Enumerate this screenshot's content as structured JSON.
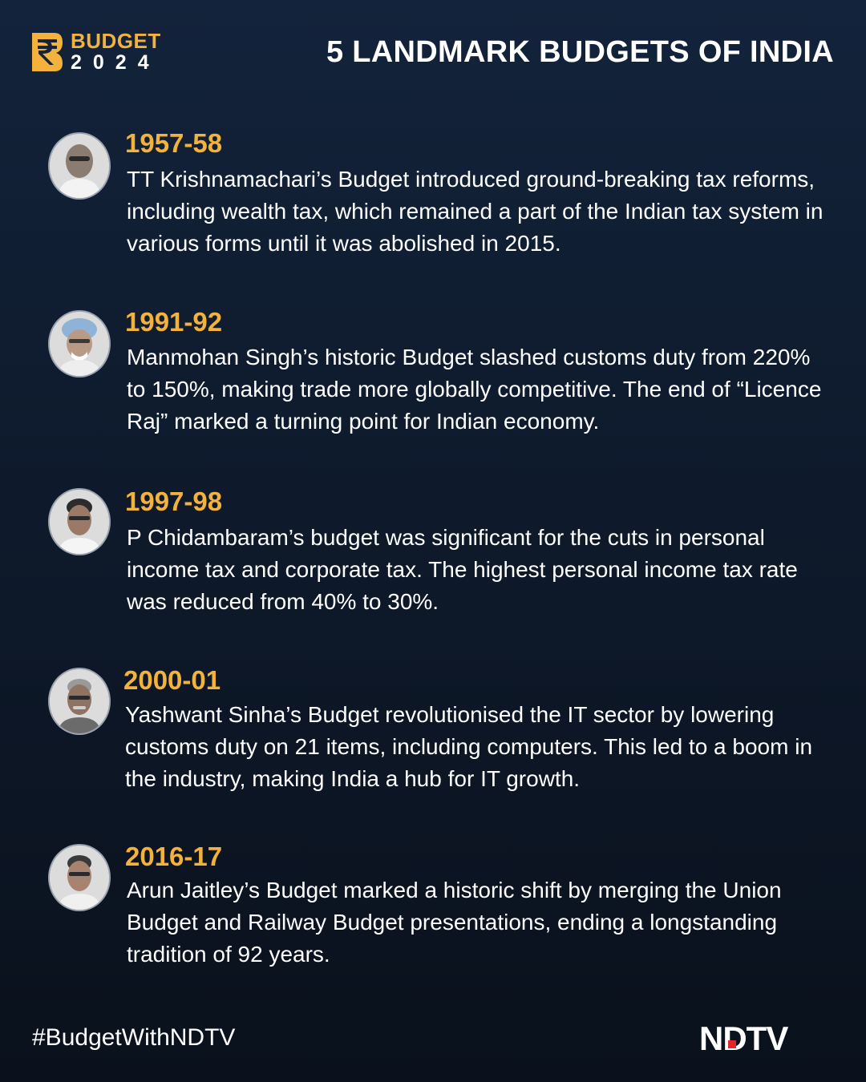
{
  "header": {
    "logo": {
      "word": "BUDGET",
      "year": "2024",
      "icon": "rupee-icon",
      "accent_color": "#f2b23c"
    },
    "title": "5 LANDMARK BUDGETS OF INDIA"
  },
  "entries": [
    {
      "year": "1957-58",
      "text": "TT Krishnamachari’s Budget introduced ground-breaking tax reforms, including wealth tax, which remained a part of the Indian tax system in various forms until it was abolished in 2015."
    },
    {
      "year": "1991-92",
      "text": "Manmohan Singh’s historic Budget slashed customs duty from 220% to 150%, making trade more globally competitive. The end of “Licence Raj” marked a turning point for Indian economy."
    },
    {
      "year": "1997-98",
      "text": "P Chidambaram’s budget was significant for the cuts in personal income tax and corporate tax. The highest personal income tax rate was reduced from 40% to 30%."
    },
    {
      "year": "2000-01",
      "text": "Yashwant Sinha’s Budget revolutionised the IT sector by lowering customs duty on 21 items, including computers. This led to a boom in the industry, making India a hub for IT growth."
    },
    {
      "year": "2016-17",
      "text": "Arun Jaitley’s Budget marked a historic shift by merging the Union Budget and Railway Budget presentations, ending a longstanding tradition of 92 years."
    }
  ],
  "footer": {
    "hashtag": "#BudgetWithNDTV",
    "brand": "NDTV",
    "brand_dot_color": "#e3262d"
  }
}
